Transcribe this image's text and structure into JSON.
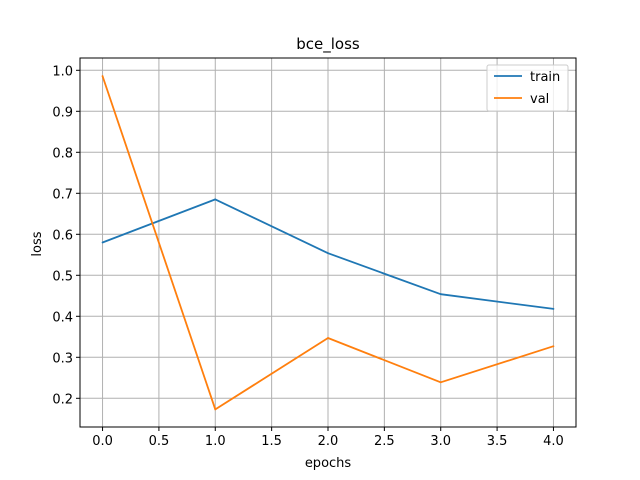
{
  "chart_data": {
    "type": "line",
    "title": "bce_loss",
    "xlabel": "epochs",
    "ylabel": "loss",
    "x": [
      0,
      1,
      2,
      3,
      4
    ],
    "xlim": [
      -0.2,
      4.2
    ],
    "ylim": [
      0.13,
      1.03
    ],
    "xticks": [
      "0.0",
      "0.5",
      "1.0",
      "1.5",
      "2.0",
      "2.5",
      "3.0",
      "3.5",
      "4.0"
    ],
    "yticks": [
      "0.2",
      "0.3",
      "0.4",
      "0.5",
      "0.6",
      "0.7",
      "0.8",
      "0.9",
      "1.0"
    ],
    "grid": true,
    "legend_position": "top-right",
    "series": [
      {
        "name": "train",
        "color": "#1f77b4",
        "values": [
          0.58,
          0.685,
          0.554,
          0.454,
          0.418
        ]
      },
      {
        "name": "val",
        "color": "#ff7f0e",
        "values": [
          0.986,
          0.173,
          0.347,
          0.239,
          0.327
        ]
      }
    ]
  }
}
